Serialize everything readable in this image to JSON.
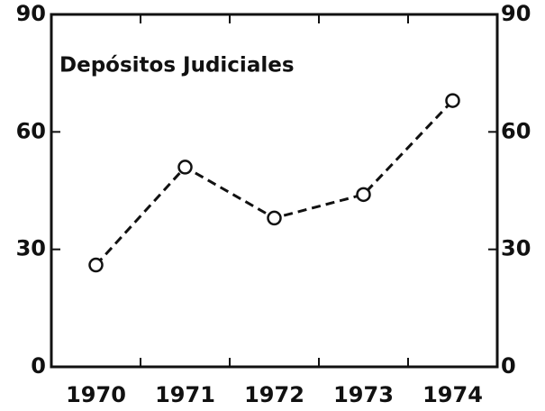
{
  "chart_data": {
    "type": "line",
    "title": "Depósitos Judiciales",
    "categories": [
      "1970",
      "1971",
      "1972",
      "1973",
      "1974"
    ],
    "series": [
      {
        "name": "Depósitos Judiciales",
        "color": "#111111",
        "values": [
          26,
          51,
          38,
          44,
          68
        ]
      }
    ],
    "ylim": [
      0,
      90
    ],
    "yticks": [
      0,
      30,
      60,
      90
    ],
    "y2lim": [
      0,
      90
    ],
    "y2ticks": [
      0,
      30,
      60,
      90
    ]
  }
}
